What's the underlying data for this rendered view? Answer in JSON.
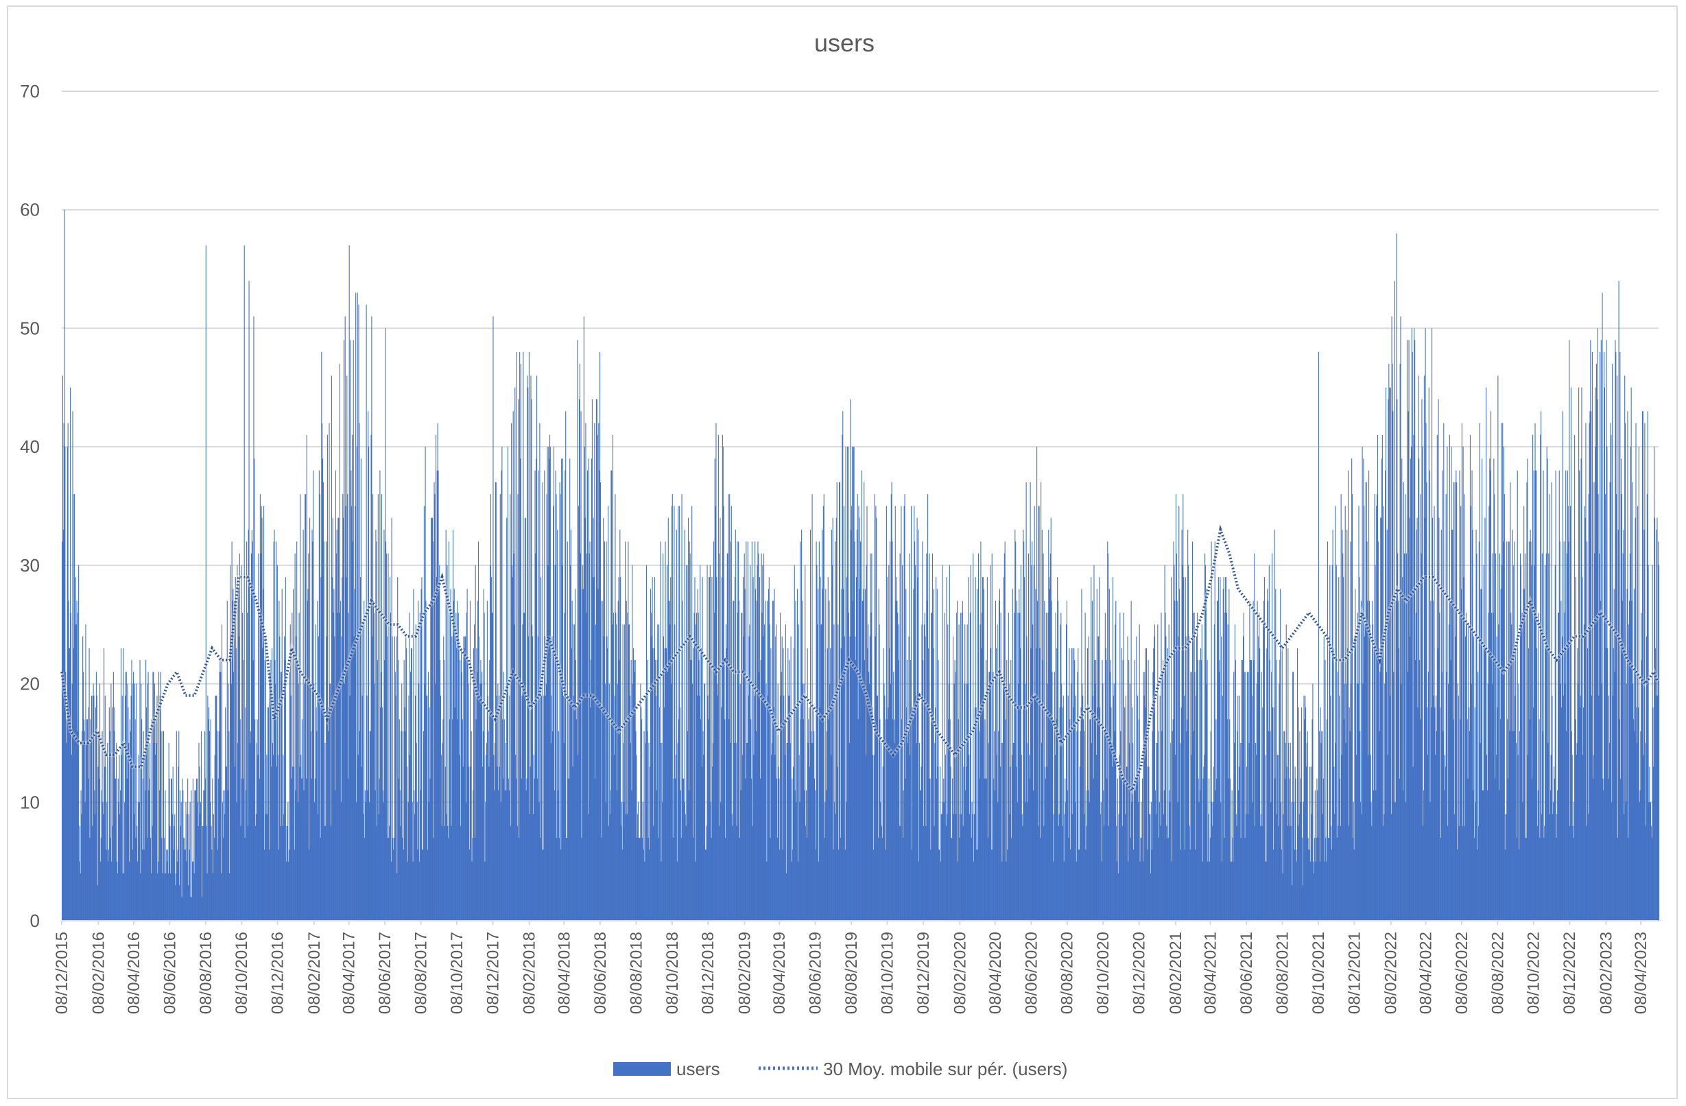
{
  "chart_data": {
    "type": "bar",
    "title": "users",
    "xlabel": "",
    "ylabel": "",
    "ylim": [
      0,
      70
    ],
    "yticks": [
      0,
      10,
      20,
      30,
      40,
      50,
      60,
      70
    ],
    "grid": true,
    "legend_position": "bottom",
    "xticks": [
      "08/12/2015",
      "08/02/2016",
      "08/04/2016",
      "08/06/2016",
      "08/08/2016",
      "08/10/2016",
      "08/12/2016",
      "08/02/2017",
      "08/04/2017",
      "08/06/2017",
      "08/08/2017",
      "08/10/2017",
      "08/12/2017",
      "08/02/2018",
      "08/04/2018",
      "08/06/2018",
      "08/08/2018",
      "08/10/2018",
      "08/12/2018",
      "08/02/2019",
      "08/04/2019",
      "08/06/2019",
      "08/08/2019",
      "08/10/2019",
      "08/12/2019",
      "08/02/2020",
      "08/04/2020",
      "08/06/2020",
      "08/08/2020",
      "08/10/2020",
      "08/12/2020",
      "08/02/2021",
      "08/04/2021",
      "08/06/2021",
      "08/08/2021",
      "08/10/2021",
      "08/12/2021",
      "08/02/2022",
      "08/04/2022",
      "08/06/2022",
      "08/08/2022",
      "08/10/2022",
      "08/12/2022",
      "08/02/2023",
      "08/04/2023"
    ],
    "x_start": "2015-12-08",
    "x_end": "2023-05-08",
    "series": [
      {
        "name": "users",
        "kind": "bar",
        "color": "#4472c4",
        "daily_values_sampled_every_15_days": [
          26,
          29,
          17,
          14,
          12,
          13,
          12,
          12,
          13,
          14,
          11,
          12,
          9,
          10,
          6,
          8,
          10,
          12,
          14,
          16,
          18,
          20,
          21,
          22,
          20,
          18,
          19,
          21,
          23,
          24,
          22,
          26,
          33,
          35,
          30,
          27,
          22,
          18,
          16,
          15,
          18,
          21,
          23,
          20,
          19,
          17,
          16,
          18,
          20,
          22,
          24,
          27,
          28,
          26,
          25,
          24,
          23,
          24,
          25,
          27,
          30,
          26,
          22,
          21,
          20,
          18,
          16,
          17,
          19,
          20,
          21,
          19,
          18,
          20,
          24,
          22,
          20,
          18,
          19,
          18,
          17,
          16,
          15,
          16,
          18,
          19,
          20,
          21,
          22,
          24,
          23,
          22,
          21,
          20,
          21,
          22,
          21,
          20,
          19,
          18,
          17,
          16,
          17,
          18,
          19,
          18,
          17,
          18,
          20,
          22,
          21,
          20,
          18,
          15,
          14,
          15,
          16,
          18,
          19,
          17,
          15,
          14,
          15,
          16,
          18,
          20,
          21,
          19,
          18,
          18,
          19,
          18,
          17,
          15,
          16,
          17,
          18,
          17,
          16,
          14,
          12,
          11,
          13,
          17,
          20,
          22,
          23,
          23,
          24,
          26,
          29,
          33,
          31,
          28,
          27,
          26,
          25,
          24,
          23,
          24,
          25,
          26,
          25,
          24,
          22,
          22,
          23,
          26,
          24,
          22,
          26,
          28,
          27,
          28,
          29,
          29,
          28,
          27,
          26,
          25,
          24,
          23,
          22,
          21,
          22,
          25,
          27,
          25,
          23,
          22,
          23,
          24,
          24,
          25,
          26,
          25,
          24,
          22,
          21,
          20,
          21,
          19,
          17,
          16,
          16,
          17,
          15
        ]
      },
      {
        "name": "30 Moy. mobile sur pér. (users)",
        "kind": "line",
        "style": "dotted",
        "color": "#4472c4",
        "values_sampled_every_15_days": [
          21,
          16,
          15,
          15,
          16,
          14,
          14,
          15,
          13,
          13,
          16,
          18,
          20,
          21,
          19,
          19,
          21,
          23,
          22,
          22,
          29,
          29,
          27,
          24,
          17,
          19,
          23,
          21,
          20,
          19,
          17,
          19,
          21,
          23,
          25,
          27,
          26,
          25,
          25,
          24,
          24,
          26,
          27,
          29,
          26,
          23,
          22,
          19,
          18,
          17,
          19,
          21,
          20,
          18,
          19,
          24,
          22,
          19,
          18,
          19,
          19,
          18,
          17,
          16,
          17,
          18,
          19,
          20,
          21,
          22,
          23,
          24,
          23,
          22,
          21,
          22,
          21,
          21,
          20,
          19,
          18,
          16,
          17,
          18,
          19,
          18,
          17,
          18,
          20,
          22,
          21,
          19,
          16,
          15,
          14,
          15,
          17,
          19,
          18,
          16,
          15,
          14,
          15,
          16,
          18,
          20,
          21,
          19,
          18,
          18,
          19,
          18,
          17,
          15,
          16,
          17,
          18,
          17,
          16,
          14,
          12,
          11,
          13,
          17,
          20,
          22,
          23,
          23,
          24,
          26,
          29,
          33,
          31,
          28,
          27,
          26,
          25,
          24,
          23,
          24,
          25,
          26,
          25,
          24,
          22,
          22,
          23,
          26,
          24,
          22,
          26,
          28,
          27,
          28,
          29,
          29,
          28,
          27,
          26,
          25,
          24,
          23,
          22,
          21,
          22,
          25,
          27,
          25,
          23,
          22,
          23,
          24,
          24,
          25,
          26,
          25,
          24,
          22,
          21,
          20,
          21,
          19,
          17,
          16,
          16,
          17,
          15
        ]
      }
    ],
    "peaks": [
      {
        "date": "2015-12-12",
        "value": 60
      },
      {
        "date": "2016-08-08",
        "value": 57
      },
      {
        "date": "2016-10-12",
        "value": 57
      },
      {
        "date": "2016-10-20",
        "value": 54
      },
      {
        "date": "2016-10-28",
        "value": 51
      },
      {
        "date": "2017-02-20",
        "value": 48
      },
      {
        "date": "2017-06-08",
        "value": 50
      },
      {
        "date": "2017-12-08",
        "value": 51
      },
      {
        "date": "2018-02-10",
        "value": 46
      },
      {
        "date": "2021-10-08",
        "value": 48
      },
      {
        "date": "2022-03-15",
        "value": 50
      },
      {
        "date": "2022-10-10",
        "value": 42
      }
    ]
  },
  "legend": {
    "bar_label": "users",
    "line_label": "30 Moy. mobile sur pér. (users)"
  }
}
